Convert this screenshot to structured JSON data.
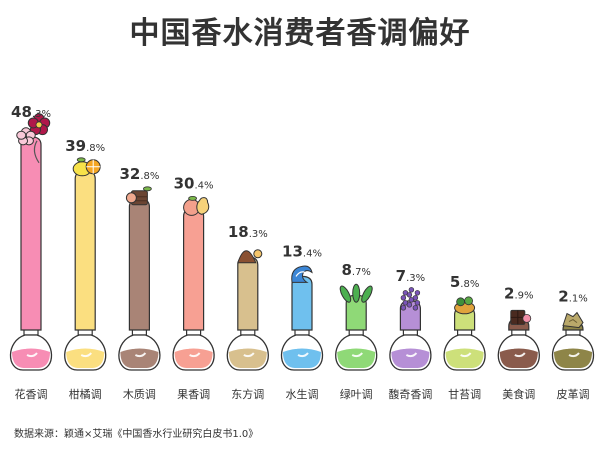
{
  "title": "中国香水消费者香调偏好",
  "source": "数据来源：颖通×艾瑞《中国香水行业研究白皮书1.0》",
  "chart_data": {
    "type": "bar",
    "title": "中国香水消费者香调偏好",
    "xlabel": "",
    "ylabel": "",
    "ylim": [
      0,
      50
    ],
    "value_suffix": "%",
    "categories": [
      "花香调",
      "柑橘调",
      "木质调",
      "果香调",
      "东方调",
      "水生调",
      "绿叶调",
      "馥奇香调",
      "甘苔调",
      "美食调",
      "皮革调"
    ],
    "values": [
      48.3,
      39.8,
      32.8,
      30.4,
      18.3,
      13.4,
      8.7,
      7.3,
      5.8,
      2.9,
      2.1
    ],
    "colors": [
      "#f78db4",
      "#fbdf80",
      "#a98476",
      "#f7a093",
      "#d8c08e",
      "#6fc0ee",
      "#8fd977",
      "#b68fd6",
      "#cde07a",
      "#8a5b4c",
      "#8e8548"
    ],
    "icons": [
      "flower-icon",
      "lemon-icon",
      "wood-icon",
      "peach-icon",
      "spice-icon",
      "wave-icon",
      "leaf-icon",
      "lavender-icon",
      "moss-icon",
      "chocolate-icon",
      "leather-icon"
    ]
  }
}
